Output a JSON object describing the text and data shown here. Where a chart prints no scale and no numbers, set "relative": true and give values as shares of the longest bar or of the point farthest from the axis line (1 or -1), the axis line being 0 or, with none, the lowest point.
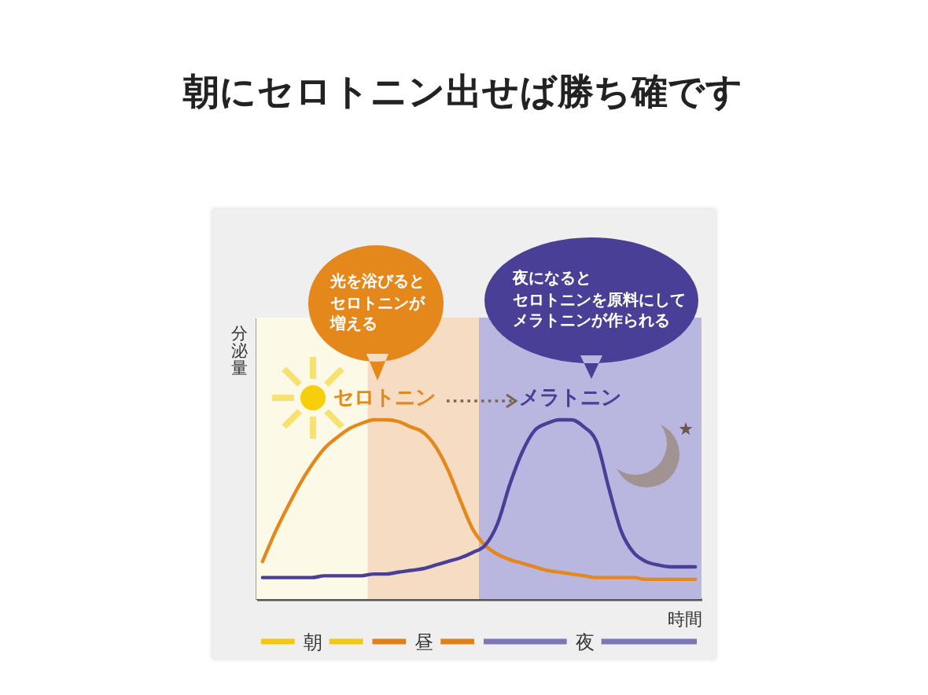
{
  "chart_data": {
    "type": "line",
    "title": "朝にセロトニン出せば勝ち確です",
    "xlabel": "時間",
    "ylabel": "分泌量",
    "relative": true,
    "categories": [
      null,
      null,
      null,
      null,
      "朝",
      null,
      null,
      null,
      null,
      null,
      null,
      null,
      null,
      "昼",
      null,
      null,
      null,
      null,
      null,
      null,
      null,
      null,
      null,
      null,
      null,
      null,
      "夜",
      null,
      null,
      null,
      null,
      null,
      null,
      null,
      null,
      null
    ],
    "series": [
      {
        "name": "セロトニン",
        "color": "#e5881c",
        "values": [
          0.21,
          0.37,
          0.51,
          0.64,
          0.75,
          0.84,
          0.9,
          0.95,
          0.98,
          1.0,
          1.0,
          0.99,
          0.96,
          0.93,
          0.85,
          0.72,
          0.55,
          0.39,
          0.3,
          0.25,
          0.22,
          0.2,
          0.18,
          0.16,
          0.15,
          0.14,
          0.13,
          0.12,
          0.12,
          0.12,
          0.12,
          0.11,
          0.11,
          0.11,
          0.11,
          0.11
        ]
      },
      {
        "name": "メラトニン",
        "color": "#4a3f97",
        "values": [
          0.12,
          0.12,
          0.12,
          0.12,
          0.12,
          0.13,
          0.13,
          0.13,
          0.13,
          0.14,
          0.14,
          0.15,
          0.16,
          0.17,
          0.19,
          0.21,
          0.23,
          0.26,
          0.3,
          0.42,
          0.64,
          0.82,
          0.94,
          0.98,
          1.0,
          1.0,
          0.96,
          0.88,
          0.62,
          0.38,
          0.26,
          0.21,
          0.19,
          0.18,
          0.18,
          0.18
        ]
      }
    ],
    "annotations": [
      "光を浴びるとセロトニンが増える",
      "夜になるとセロトニンを原料にしてメラトニンが作られる"
    ]
  }
}
